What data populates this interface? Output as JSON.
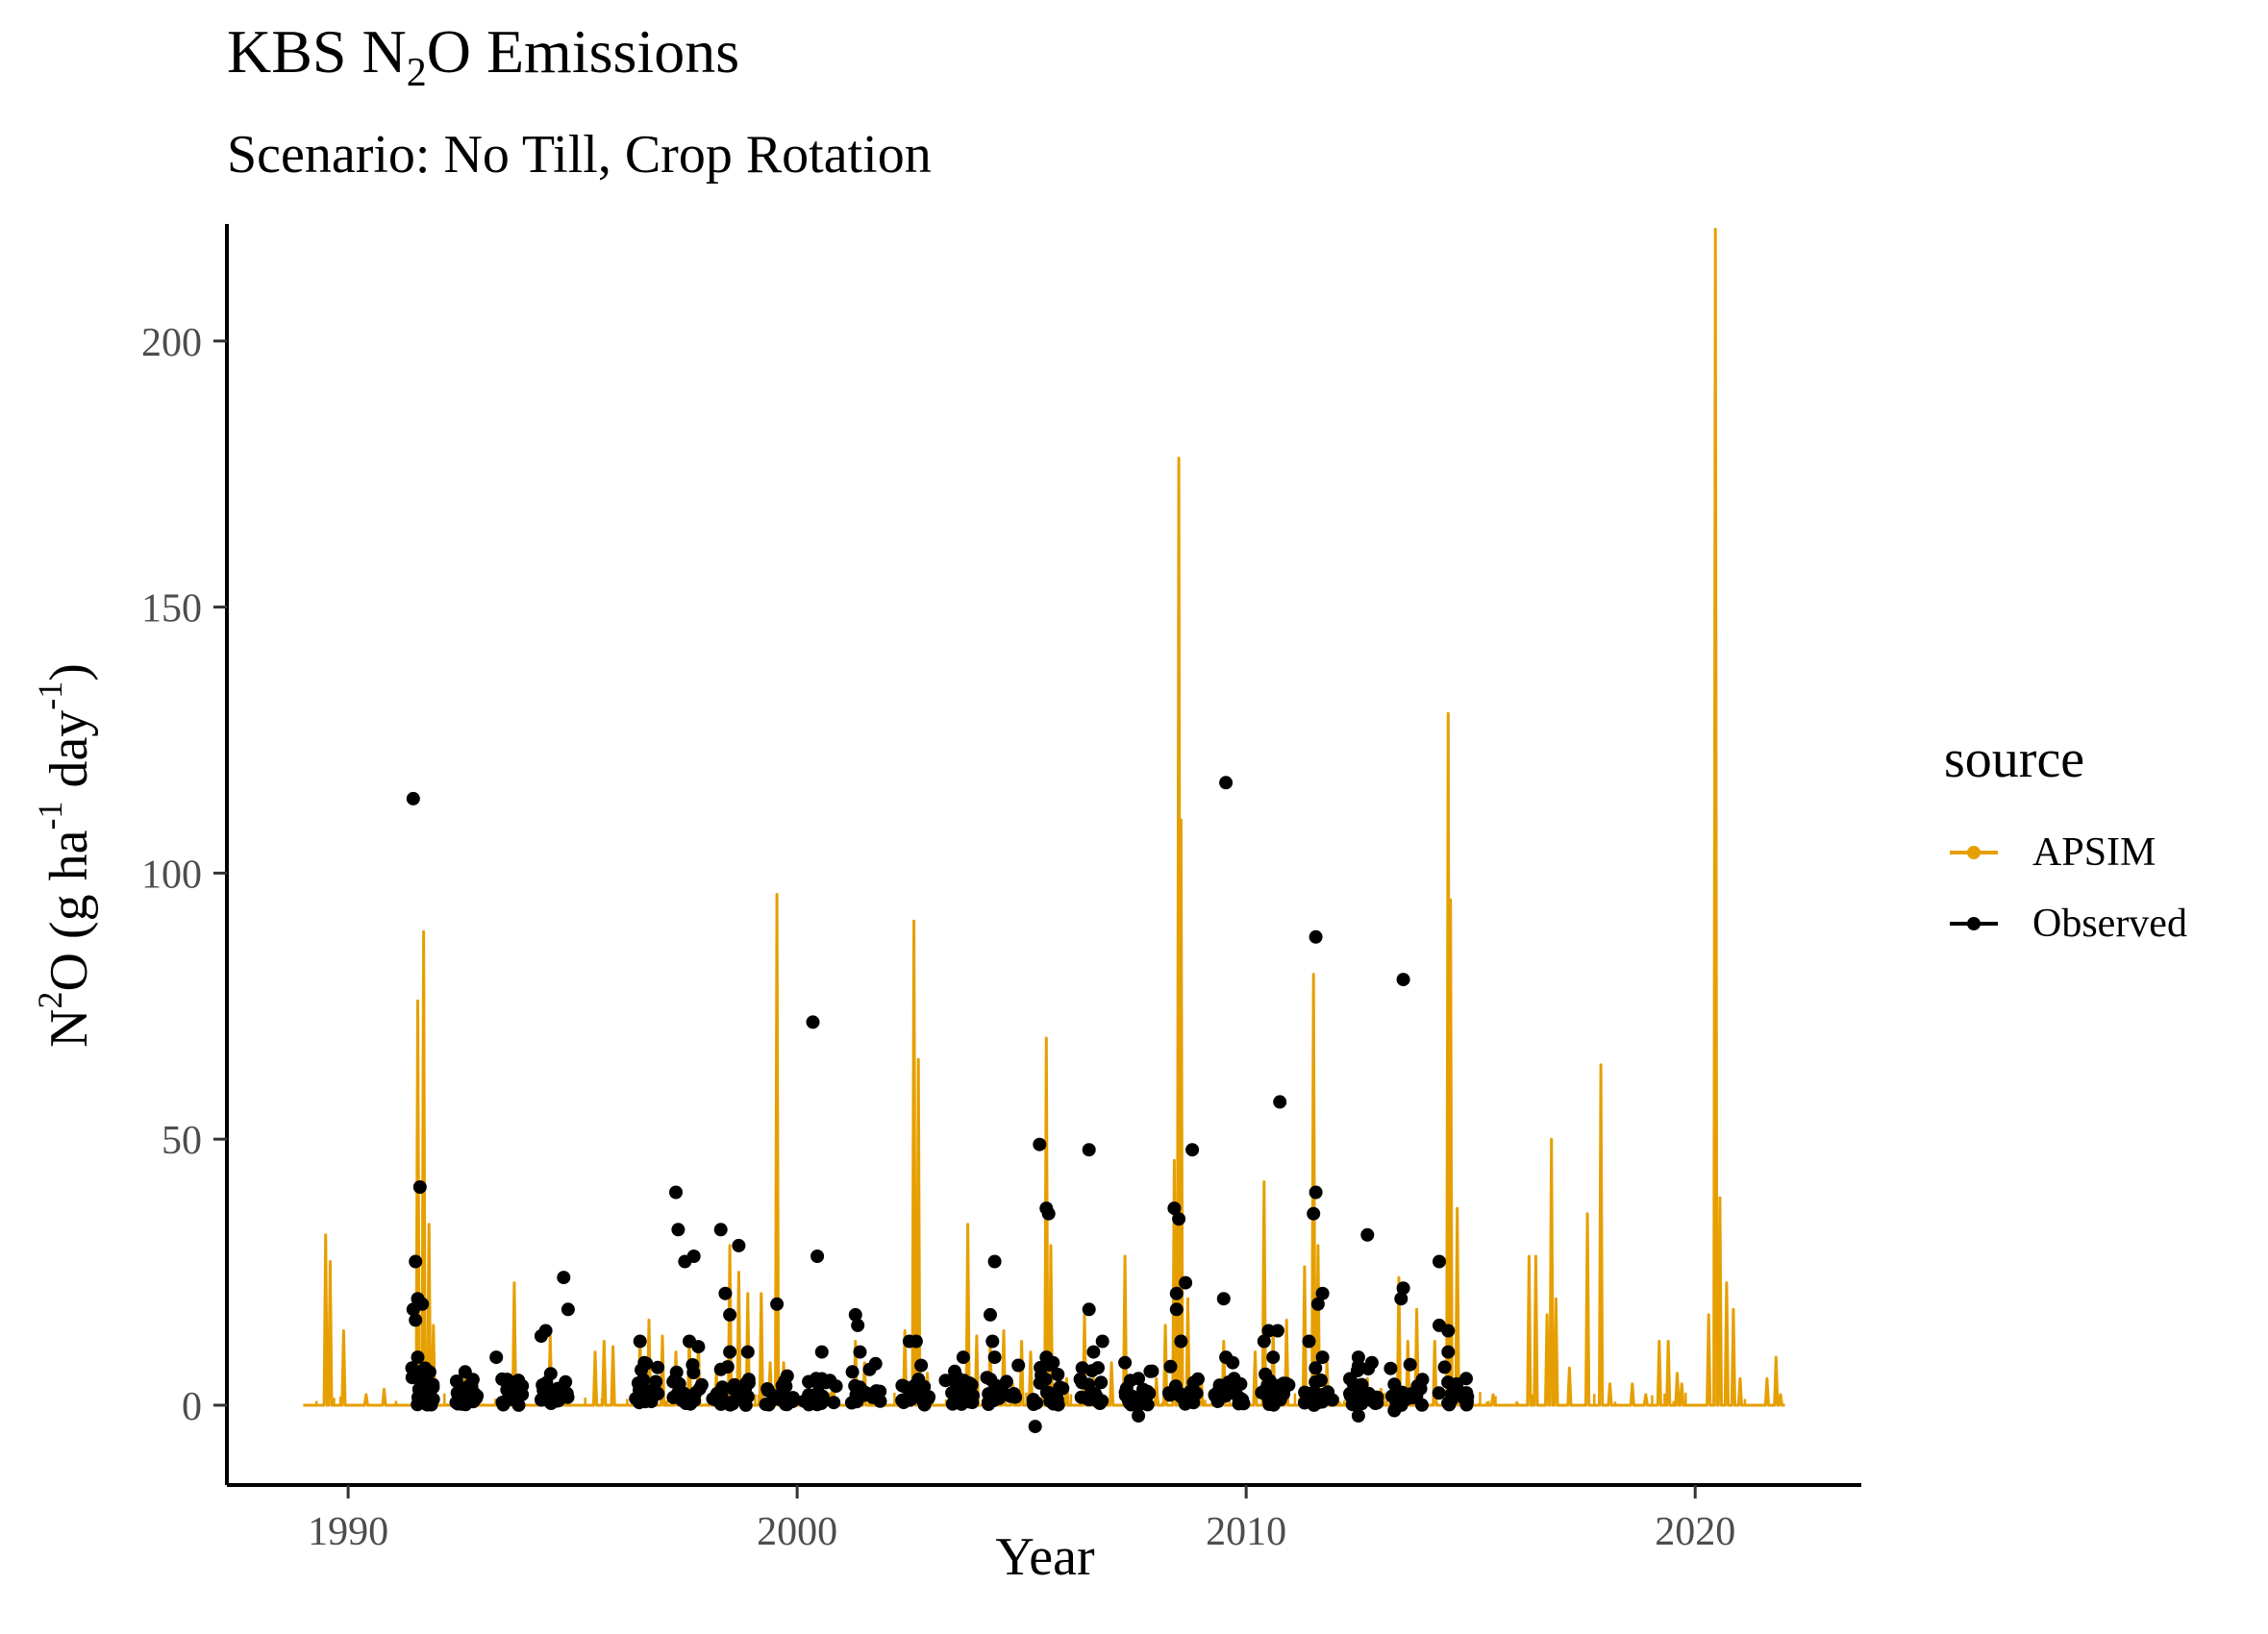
{
  "chart_data": {
    "type": "line",
    "title_prefix": "KBS N",
    "title_sub": "2",
    "title_suffix": "O Emissions",
    "subtitle": "Scenario: No Till, Crop Rotation",
    "xlabel": "Year",
    "ylabel_parts": {
      "a": "N",
      "b": "2",
      "c": "O (g ha",
      "d": "-1",
      "e": " day",
      "f": "-1",
      "g": ")"
    },
    "xlim": [
      1987.3,
      2023.7
    ],
    "ylim": [
      -15,
      222
    ],
    "x_ticks": [
      1990,
      2000,
      2010,
      2020
    ],
    "y_ticks": [
      0,
      50,
      100,
      150,
      200
    ],
    "grid": false,
    "legend": {
      "title": "source",
      "position": "right",
      "entries": [
        {
          "label": "APSIM",
          "color": "#E69F00"
        },
        {
          "label": "Observed",
          "color": "#000000"
        }
      ]
    },
    "series": [
      {
        "name": "APSIM",
        "kind": "line",
        "color": "#E69F00",
        "x_range": [
          1989.0,
          2022.0
        ],
        "peaks": [
          [
            1989.5,
            32
          ],
          [
            1989.6,
            27
          ],
          [
            1989.9,
            14
          ],
          [
            1990.4,
            2
          ],
          [
            1990.8,
            3
          ],
          [
            1991.55,
            76
          ],
          [
            1991.68,
            89
          ],
          [
            1991.8,
            34
          ],
          [
            1991.9,
            15
          ],
          [
            1992.6,
            5
          ],
          [
            1993.5,
            4
          ],
          [
            1993.7,
            23
          ],
          [
            1994.5,
            13
          ],
          [
            1994.8,
            5
          ],
          [
            1995.5,
            10
          ],
          [
            1995.7,
            12
          ],
          [
            1995.9,
            11
          ],
          [
            1996.5,
            13
          ],
          [
            1996.7,
            16
          ],
          [
            1997.0,
            13
          ],
          [
            1997.3,
            10
          ],
          [
            1997.6,
            13
          ],
          [
            1997.8,
            12
          ],
          [
            1998.2,
            6
          ],
          [
            1998.5,
            30
          ],
          [
            1998.7,
            25
          ],
          [
            1998.9,
            21
          ],
          [
            1999.2,
            21
          ],
          [
            1999.4,
            8
          ],
          [
            1999.55,
            96
          ],
          [
            1999.7,
            8
          ],
          [
            2000.4,
            6
          ],
          [
            2000.8,
            5
          ],
          [
            2001.3,
            12
          ],
          [
            2001.5,
            8
          ],
          [
            2002.4,
            14
          ],
          [
            2002.6,
            91
          ],
          [
            2002.7,
            65
          ],
          [
            2002.9,
            6
          ],
          [
            2003.5,
            4
          ],
          [
            2003.8,
            34
          ],
          [
            2004.0,
            13
          ],
          [
            2004.3,
            12
          ],
          [
            2004.6,
            14
          ],
          [
            2004.8,
            4
          ],
          [
            2005.0,
            12
          ],
          [
            2005.2,
            10
          ],
          [
            2005.55,
            69
          ],
          [
            2005.65,
            30
          ],
          [
            2006.0,
            5
          ],
          [
            2006.4,
            17
          ],
          [
            2006.6,
            5
          ],
          [
            2007.0,
            8
          ],
          [
            2007.3,
            28
          ],
          [
            2007.6,
            3
          ],
          [
            2008.0,
            5
          ],
          [
            2008.2,
            15
          ],
          [
            2008.4,
            46
          ],
          [
            2008.5,
            178
          ],
          [
            2008.55,
            110
          ],
          [
            2008.7,
            20
          ],
          [
            2009.0,
            5
          ],
          [
            2009.5,
            12
          ],
          [
            2009.8,
            5
          ],
          [
            2010.2,
            10
          ],
          [
            2010.4,
            42
          ],
          [
            2010.6,
            14
          ],
          [
            2010.9,
            16
          ],
          [
            2011.3,
            26
          ],
          [
            2011.5,
            81
          ],
          [
            2011.6,
            30
          ],
          [
            2011.8,
            8
          ],
          [
            2012.3,
            6
          ],
          [
            2012.7,
            5
          ],
          [
            2013.0,
            3
          ],
          [
            2013.4,
            24
          ],
          [
            2013.6,
            12
          ],
          [
            2013.8,
            18
          ],
          [
            2014.2,
            12
          ],
          [
            2014.5,
            130
          ],
          [
            2014.55,
            95
          ],
          [
            2014.7,
            37
          ],
          [
            2015.0,
            3
          ],
          [
            2015.5,
            2
          ],
          [
            2016.3,
            28
          ],
          [
            2016.45,
            28
          ],
          [
            2016.7,
            17
          ],
          [
            2016.8,
            50
          ],
          [
            2016.9,
            20
          ],
          [
            2017.2,
            7
          ],
          [
            2017.6,
            36
          ],
          [
            2017.9,
            64
          ],
          [
            2018.1,
            4
          ],
          [
            2018.6,
            4
          ],
          [
            2018.9,
            2
          ],
          [
            2019.2,
            12
          ],
          [
            2019.4,
            12
          ],
          [
            2019.6,
            6
          ],
          [
            2019.7,
            4
          ],
          [
            2020.3,
            17
          ],
          [
            2020.45,
            221
          ],
          [
            2020.55,
            39
          ],
          [
            2020.7,
            23
          ],
          [
            2020.85,
            18
          ],
          [
            2021.0,
            5
          ],
          [
            2021.6,
            5
          ],
          [
            2021.8,
            9
          ],
          [
            2021.9,
            2
          ]
        ]
      },
      {
        "name": "Observed",
        "kind": "points",
        "color": "#000000",
        "highlighted_points": [
          [
            1991.45,
            114
          ],
          [
            1991.5,
            27
          ],
          [
            1991.55,
            20
          ],
          [
            1991.45,
            18
          ],
          [
            1991.5,
            16
          ],
          [
            1991.6,
            41
          ],
          [
            1991.65,
            19
          ],
          [
            1991.55,
            9
          ],
          [
            1991.6,
            5
          ],
          [
            1993.3,
            9
          ],
          [
            1994.3,
            13
          ],
          [
            1994.4,
            14
          ],
          [
            1994.8,
            24
          ],
          [
            1994.9,
            18
          ],
          [
            1996.5,
            12
          ],
          [
            1996.6,
            8
          ],
          [
            1997.3,
            40
          ],
          [
            1997.35,
            33
          ],
          [
            1997.5,
            27
          ],
          [
            1997.7,
            28
          ],
          [
            1997.6,
            12
          ],
          [
            1997.8,
            11
          ],
          [
            1998.3,
            33
          ],
          [
            1998.4,
            21
          ],
          [
            1998.5,
            17
          ],
          [
            1998.5,
            10
          ],
          [
            1998.7,
            30
          ],
          [
            1998.9,
            10
          ],
          [
            1999.55,
            19
          ],
          [
            2000.35,
            72
          ],
          [
            2000.45,
            28
          ],
          [
            2000.55,
            10
          ],
          [
            2001.3,
            17
          ],
          [
            2001.35,
            15
          ],
          [
            2001.4,
            10
          ],
          [
            2002.5,
            12
          ],
          [
            2002.65,
            12
          ],
          [
            2003.5,
            5
          ],
          [
            2003.7,
            9
          ],
          [
            2004.4,
            27
          ],
          [
            2004.3,
            17
          ],
          [
            2004.35,
            12
          ],
          [
            2004.4,
            9
          ],
          [
            2005.4,
            49
          ],
          [
            2005.55,
            37
          ],
          [
            2005.6,
            36
          ],
          [
            2005.55,
            9
          ],
          [
            2005.7,
            8
          ],
          [
            2006.5,
            48
          ],
          [
            2006.5,
            18
          ],
          [
            2006.6,
            10
          ],
          [
            2006.8,
            12
          ],
          [
            2007.3,
            8
          ],
          [
            2007.6,
            5
          ],
          [
            2008.4,
            37
          ],
          [
            2008.5,
            35
          ],
          [
            2008.45,
            21
          ],
          [
            2008.65,
            23
          ],
          [
            2008.45,
            18
          ],
          [
            2008.55,
            12
          ],
          [
            2008.8,
            48
          ],
          [
            2009.55,
            117
          ],
          [
            2009.5,
            20
          ],
          [
            2009.55,
            9
          ],
          [
            2009.7,
            8
          ],
          [
            2010.5,
            14
          ],
          [
            2010.75,
            57
          ],
          [
            2010.7,
            14
          ],
          [
            2010.4,
            12
          ],
          [
            2010.6,
            9
          ],
          [
            2011.55,
            88
          ],
          [
            2011.55,
            40
          ],
          [
            2011.5,
            36
          ],
          [
            2011.7,
            21
          ],
          [
            2011.6,
            19
          ],
          [
            2011.4,
            12
          ],
          [
            2011.7,
            9
          ],
          [
            2012.7,
            32
          ],
          [
            2012.5,
            9
          ],
          [
            2012.8,
            8
          ],
          [
            2013.5,
            80
          ],
          [
            2013.5,
            22
          ],
          [
            2013.45,
            20
          ],
          [
            2014.3,
            27
          ],
          [
            2014.3,
            15
          ],
          [
            2014.5,
            14
          ],
          [
            2014.5,
            10
          ],
          [
            2014.9,
            5
          ]
        ],
        "baseline_clusters": [
          [
            1991.4,
            1991.9
          ],
          [
            1992.4,
            1992.9
          ],
          [
            1993.3,
            1993.9
          ],
          [
            1994.3,
            1994.95
          ],
          [
            1996.4,
            1996.9
          ],
          [
            1997.2,
            1997.9
          ],
          [
            1998.1,
            1998.95
          ],
          [
            1999.3,
            1999.95
          ],
          [
            2000.1,
            2000.9
          ],
          [
            2001.2,
            2001.9
          ],
          [
            2002.3,
            2002.95
          ],
          [
            2003.3,
            2003.95
          ],
          [
            2004.2,
            2004.95
          ],
          [
            2005.2,
            2005.95
          ],
          [
            2006.3,
            2006.95
          ],
          [
            2007.3,
            2007.95
          ],
          [
            2008.2,
            2008.95
          ],
          [
            2009.3,
            2009.95
          ],
          [
            2010.3,
            2010.95
          ],
          [
            2011.3,
            2011.95
          ],
          [
            2012.3,
            2012.95
          ],
          [
            2013.2,
            2013.95
          ],
          [
            2014.2,
            2014.95
          ]
        ],
        "negative_points": [
          [
            2005.3,
            -4
          ],
          [
            2007.6,
            -2
          ],
          [
            2012.5,
            -2
          ],
          [
            2013.3,
            -1
          ]
        ]
      }
    ]
  }
}
